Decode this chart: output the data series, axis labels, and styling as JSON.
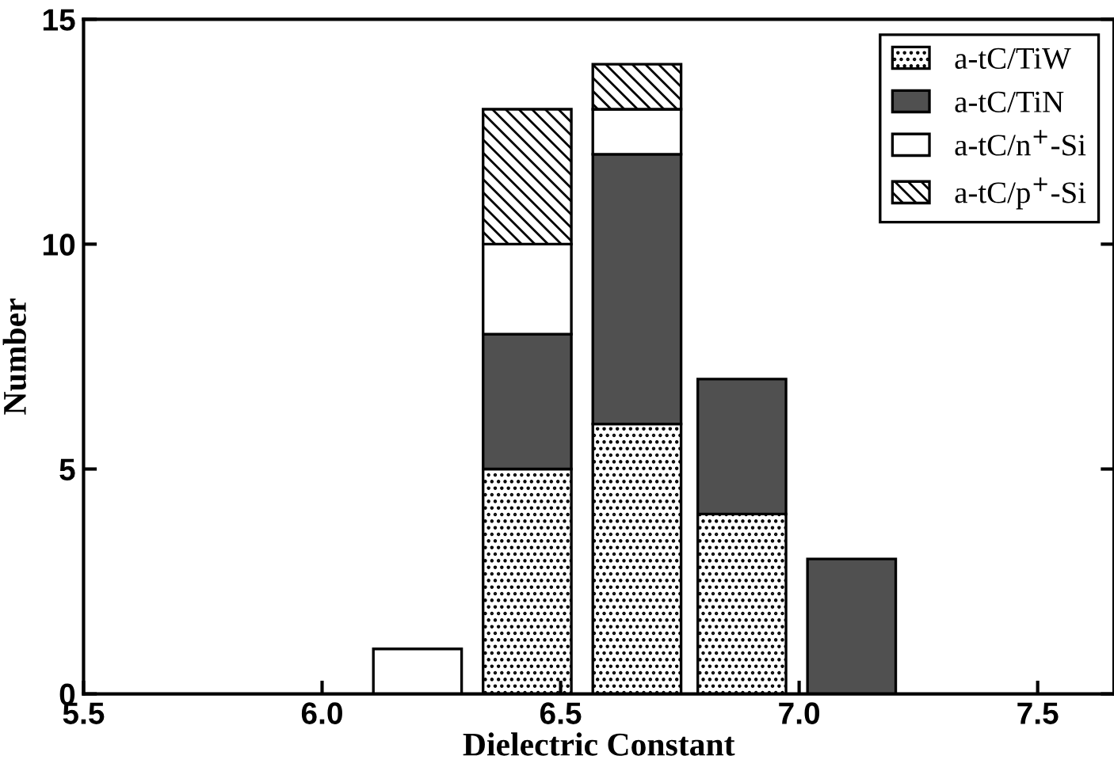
{
  "chart_data": {
    "type": "bar",
    "stacked": true,
    "xlabel": "Dielectric Constant",
    "ylabel": "Number",
    "x": [
      6.2,
      6.43,
      6.66,
      6.88,
      7.11
    ],
    "series": [
      {
        "name": "a-tC/TiW",
        "color": "#000000",
        "values": [
          null,
          5,
          6,
          4,
          null
        ]
      },
      {
        "name": "a-tC/TiN",
        "color": "#505050",
        "values": [
          null,
          3,
          6,
          3,
          3
        ]
      },
      {
        "name": "a-tC/n$^{+}$-Si",
        "color": "#ffffff",
        "values": [
          1,
          2,
          1,
          null,
          null
        ]
      },
      {
        "name": "a-tC/p$^{+}$-Si",
        "color": "#000000",
        "values": [
          null,
          3,
          1,
          null,
          null
        ]
      }
    ],
    "xlim": [
      5.5,
      7.66
    ],
    "xticks": [
      5.5,
      {
        "value": 6,
        "label": "6.0"
      },
      6.5,
      {
        "value": 7,
        "label": "7.0"
      },
      7.5
    ],
    "ylim": [
      0,
      15
    ],
    "yticks": [
      0,
      5,
      10,
      15
    ],
    "legend": "top right",
    "grid": false
  }
}
